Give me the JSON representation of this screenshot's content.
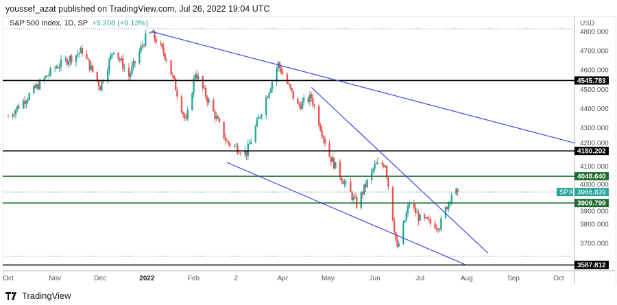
{
  "header": {
    "published": "youssef_azat published on TradingView.com, Jul 26, 2022 19:04 UTC"
  },
  "legend": {
    "symbol": "S&P 500 Index, 1D, SP",
    "change": "+5.208 (+0.13%)"
  },
  "footer": {
    "brand": "TradingView",
    "logo_icon": "tradingview-logo-icon"
  },
  "colors": {
    "up": "#26a69a",
    "down": "#ef5350",
    "trendline": "#3f3ff0",
    "support_black": "#000000",
    "support_green": "#1e6b2e",
    "last_price": "#26a69a"
  },
  "chart_data": {
    "type": "candlestick",
    "currency": "USD",
    "ylim": [
      3560,
      4840
    ],
    "y_ticks": [
      3700,
      3800,
      3900,
      4000,
      4100,
      4200,
      4300,
      4400,
      4500,
      4600,
      4700,
      4800
    ],
    "x_ticks": [
      "Oct",
      "Nov",
      "Dec",
      "2022",
      "Feb",
      "2",
      "Apr",
      "May",
      "Jun",
      "Jul",
      "Aug",
      "Sep",
      "Oct"
    ],
    "x_tick_dates": [
      "2021-10-01",
      "2021-11-01",
      "2021-12-01",
      "2022-01-01",
      "2022-02-01",
      "2022-03-01",
      "2022-04-01",
      "2022-05-01",
      "2022-06-01",
      "2022-07-01",
      "2022-08-01",
      "2022-09-01",
      "2022-10-01"
    ],
    "approx_closes": [
      [
        "2021-10-01",
        4357
      ],
      [
        "2021-10-15",
        4471
      ],
      [
        "2021-11-01",
        4613
      ],
      [
        "2021-11-19",
        4700
      ],
      [
        "2021-12-01",
        4513
      ],
      [
        "2021-12-10",
        4712
      ],
      [
        "2021-12-20",
        4568
      ],
      [
        "2021-12-31",
        4766
      ],
      [
        "2022-01-04",
        4793
      ],
      [
        "2022-01-14",
        4663
      ],
      [
        "2022-01-27",
        4326
      ],
      [
        "2022-02-02",
        4589
      ],
      [
        "2022-02-23",
        4225
      ],
      [
        "2022-03-08",
        4170
      ],
      [
        "2022-03-29",
        4631
      ],
      [
        "2022-04-11",
        4412
      ],
      [
        "2022-04-20",
        4459
      ],
      [
        "2022-05-02",
        4155
      ],
      [
        "2022-05-20",
        3901
      ],
      [
        "2022-06-01",
        4101
      ],
      [
        "2022-06-08",
        4115
      ],
      [
        "2022-06-16",
        3667
      ],
      [
        "2022-06-24",
        3911
      ],
      [
        "2022-07-01",
        3825
      ],
      [
        "2022-07-14",
        3790
      ],
      [
        "2022-07-22",
        3961
      ],
      [
        "2022-07-26",
        3966.839
      ]
    ],
    "horizontal_levels": [
      {
        "value": 4545.783,
        "label": "4545.783",
        "color": "#000000"
      },
      {
        "value": 4180.202,
        "label": "4180.202",
        "color": "#000000"
      },
      {
        "value": 4048.64,
        "label": "4048.640",
        "color": "#1e6b2e"
      },
      {
        "value": 3909.799,
        "label": "3909.799",
        "color": "#1e6b2e"
      },
      {
        "value": 3587.812,
        "label": "3587.812",
        "color": "#000000"
      }
    ],
    "trendlines": [
      {
        "from": [
          "2022-01-04",
          4800
        ],
        "to": [
          "2022-10-12",
          4220
        ]
      },
      {
        "from": [
          "2022-02-23",
          4120
        ],
        "to": [
          "2022-07-31",
          3590
        ]
      },
      {
        "from": [
          "2022-04-20",
          4510
        ],
        "to": [
          "2022-08-15",
          3650
        ]
      }
    ],
    "last_price": {
      "symbol": "SPX",
      "value": "3966.839"
    }
  }
}
